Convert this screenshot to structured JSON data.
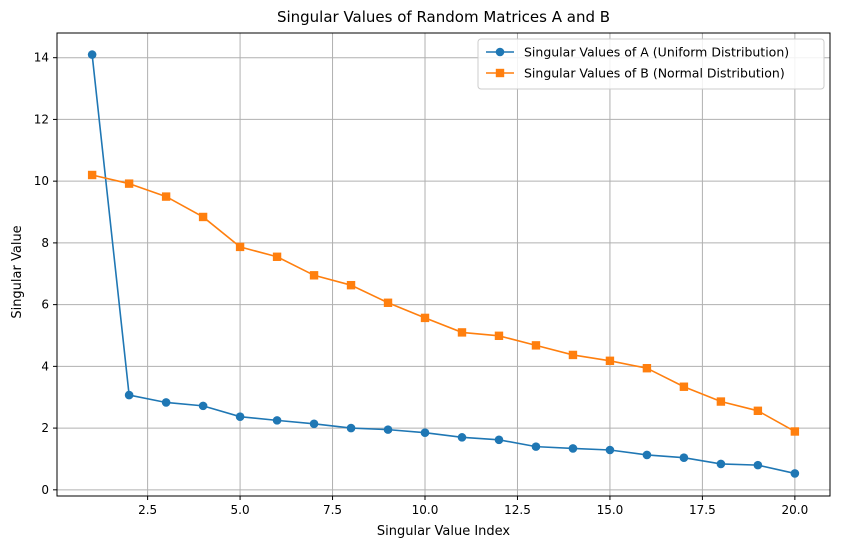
{
  "chart_data": {
    "type": "line",
    "title": "Singular Values of Random Matrices A and B",
    "xlabel": "Singular Value Index",
    "ylabel": "Singular Value",
    "xlim": [
      0.05,
      20.95
    ],
    "ylim": [
      -0.2,
      14.8
    ],
    "xticks": [
      2.5,
      5.0,
      7.5,
      10.0,
      12.5,
      15.0,
      17.5,
      20.0
    ],
    "xtick_labels": [
      "2.5",
      "5.0",
      "7.5",
      "10.0",
      "12.5",
      "15.0",
      "17.5",
      "20.0"
    ],
    "yticks": [
      0,
      2,
      4,
      6,
      8,
      10,
      12,
      14
    ],
    "ytick_labels": [
      "0",
      "2",
      "4",
      "6",
      "8",
      "10",
      "12",
      "14"
    ],
    "grid": true,
    "legend_position": "top-right",
    "x": [
      1,
      2,
      3,
      4,
      5,
      6,
      7,
      8,
      9,
      10,
      11,
      12,
      13,
      14,
      15,
      16,
      17,
      18,
      19,
      20
    ],
    "series": [
      {
        "name": "Singular Values of A (Uniform Distribution)",
        "color": "#1f77b4",
        "marker": "circle",
        "values": [
          14.1,
          3.07,
          2.83,
          2.72,
          2.37,
          2.25,
          2.14,
          2.0,
          1.95,
          1.85,
          1.7,
          1.62,
          1.4,
          1.34,
          1.29,
          1.13,
          1.04,
          0.84,
          0.8,
          0.53
        ]
      },
      {
        "name": "Singular Values of B (Normal Distribution)",
        "color": "#ff7f0e",
        "marker": "square",
        "values": [
          10.2,
          9.92,
          9.5,
          8.84,
          7.87,
          7.55,
          6.95,
          6.63,
          6.06,
          5.57,
          5.1,
          4.99,
          4.68,
          4.37,
          4.18,
          3.94,
          3.34,
          2.86,
          2.56,
          1.89
        ]
      }
    ]
  }
}
